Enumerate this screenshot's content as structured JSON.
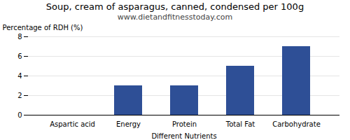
{
  "chart_data": {
    "type": "bar",
    "title": "Soup, cream of asparagus, canned, condensed per 100g",
    "subtitle": "www.dietandfitnesstoday.com",
    "xlabel": "Different Nutrients",
    "ylabel": "Percentage of RDH (%)",
    "categories": [
      "Aspartic acid",
      "Energy",
      "Protein",
      "Total Fat",
      "Carbohydrate"
    ],
    "values": [
      0,
      3.0,
      3.0,
      5.0,
      7.0
    ],
    "color": "#2e4f96",
    "ylim": [
      0,
      8
    ],
    "yticks": [
      0,
      2,
      4,
      6,
      8
    ],
    "grid": true
  }
}
